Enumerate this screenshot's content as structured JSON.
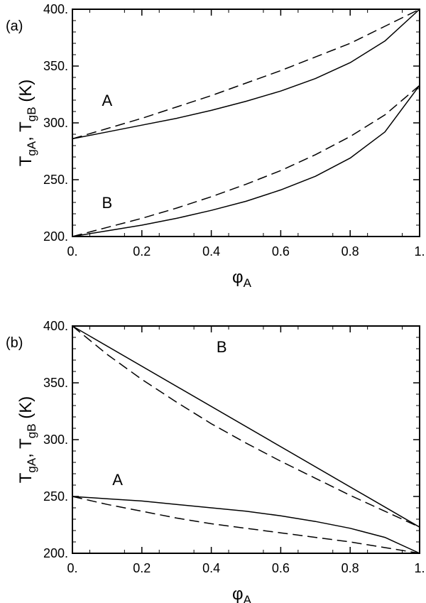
{
  "chart_data": [
    {
      "type": "line",
      "panel_label": "(a)",
      "ylabel": "T_gA, T_gB (K)",
      "xlabel": "φ_A",
      "xlim": [
        0,
        1
      ],
      "ylim": [
        200,
        400
      ],
      "x_ticks": [
        0,
        0.2,
        0.4,
        0.6,
        0.8,
        1
      ],
      "x_tick_labels": [
        "0.",
        "0.2",
        "0.4",
        "0.6",
        "0.8",
        "1."
      ],
      "y_ticks": [
        200,
        250,
        300,
        350,
        400
      ],
      "y_tick_labels": [
        "200.",
        "250.",
        "300.",
        "350.",
        "400."
      ],
      "grid": false,
      "series": [
        {
          "label": "A",
          "style": "solid",
          "x": [
            0,
            0.1,
            0.2,
            0.3,
            0.4,
            0.5,
            0.6,
            0.7,
            0.8,
            0.9,
            1.0
          ],
          "y": [
            286,
            292,
            298,
            304,
            311,
            319,
            328,
            339,
            353,
            372,
            400
          ]
        },
        {
          "label": "A",
          "style": "dashed",
          "x": [
            0,
            0.1,
            0.2,
            0.3,
            0.4,
            0.5,
            0.6,
            0.7,
            0.8,
            0.9,
            1.0
          ],
          "y": [
            286,
            295,
            304,
            314,
            324,
            335,
            346,
            358,
            370,
            385,
            400
          ]
        },
        {
          "label": "B",
          "style": "solid",
          "x": [
            0,
            0.1,
            0.2,
            0.3,
            0.4,
            0.5,
            0.6,
            0.7,
            0.8,
            0.9,
            1.0
          ],
          "y": [
            200,
            205,
            210,
            216,
            223,
            231,
            241,
            253,
            269,
            292,
            333
          ]
        },
        {
          "label": "B",
          "style": "dashed",
          "x": [
            0,
            0.1,
            0.2,
            0.3,
            0.4,
            0.5,
            0.6,
            0.7,
            0.8,
            0.9,
            1.0
          ],
          "y": [
            200,
            208,
            216,
            225,
            235,
            246,
            258,
            272,
            288,
            307,
            333
          ]
        }
      ],
      "curve_labels": [
        {
          "text": "A",
          "x": 0.1,
          "y": 315
        },
        {
          "text": "B",
          "x": 0.1,
          "y": 225
        }
      ]
    },
    {
      "type": "line",
      "panel_label": "(b)",
      "ylabel": "T_gA, T_gB (K)",
      "xlabel": "φ_A",
      "xlim": [
        0,
        1
      ],
      "ylim": [
        200,
        400
      ],
      "x_ticks": [
        0,
        0.2,
        0.4,
        0.6,
        0.8,
        1
      ],
      "x_tick_labels": [
        "0.",
        "0.2",
        "0.4",
        "0.6",
        "0.8",
        "1."
      ],
      "y_ticks": [
        200,
        250,
        300,
        350,
        400
      ],
      "y_tick_labels": [
        "200.",
        "250.",
        "300.",
        "350.",
        "400."
      ],
      "grid": false,
      "series": [
        {
          "label": "B",
          "style": "solid",
          "x": [
            0,
            1
          ],
          "y": [
            400,
            223
          ]
        },
        {
          "label": "B",
          "style": "dashed",
          "x": [
            0,
            0.1,
            0.2,
            0.3,
            0.4,
            0.5,
            0.6,
            0.7,
            0.8,
            0.9,
            1.0
          ],
          "y": [
            400,
            375,
            353,
            333,
            314,
            297,
            281,
            266,
            251,
            237,
            223
          ]
        },
        {
          "label": "A",
          "style": "solid",
          "x": [
            0,
            0.1,
            0.2,
            0.3,
            0.4,
            0.5,
            0.6,
            0.7,
            0.8,
            0.9,
            1.0
          ],
          "y": [
            250,
            248,
            246,
            243,
            240,
            237,
            233,
            228,
            222,
            214,
            200
          ]
        },
        {
          "label": "A",
          "style": "dashed",
          "x": [
            0,
            0.1,
            0.2,
            0.3,
            0.4,
            0.5,
            0.6,
            0.7,
            0.8,
            0.9,
            1.0
          ],
          "y": [
            250,
            243,
            237,
            231,
            226,
            222,
            218,
            214,
            210,
            205,
            200
          ]
        }
      ],
      "curve_labels": [
        {
          "text": "B",
          "x": 0.43,
          "y": 377
        },
        {
          "text": "A",
          "x": 0.13,
          "y": 260
        }
      ]
    }
  ]
}
